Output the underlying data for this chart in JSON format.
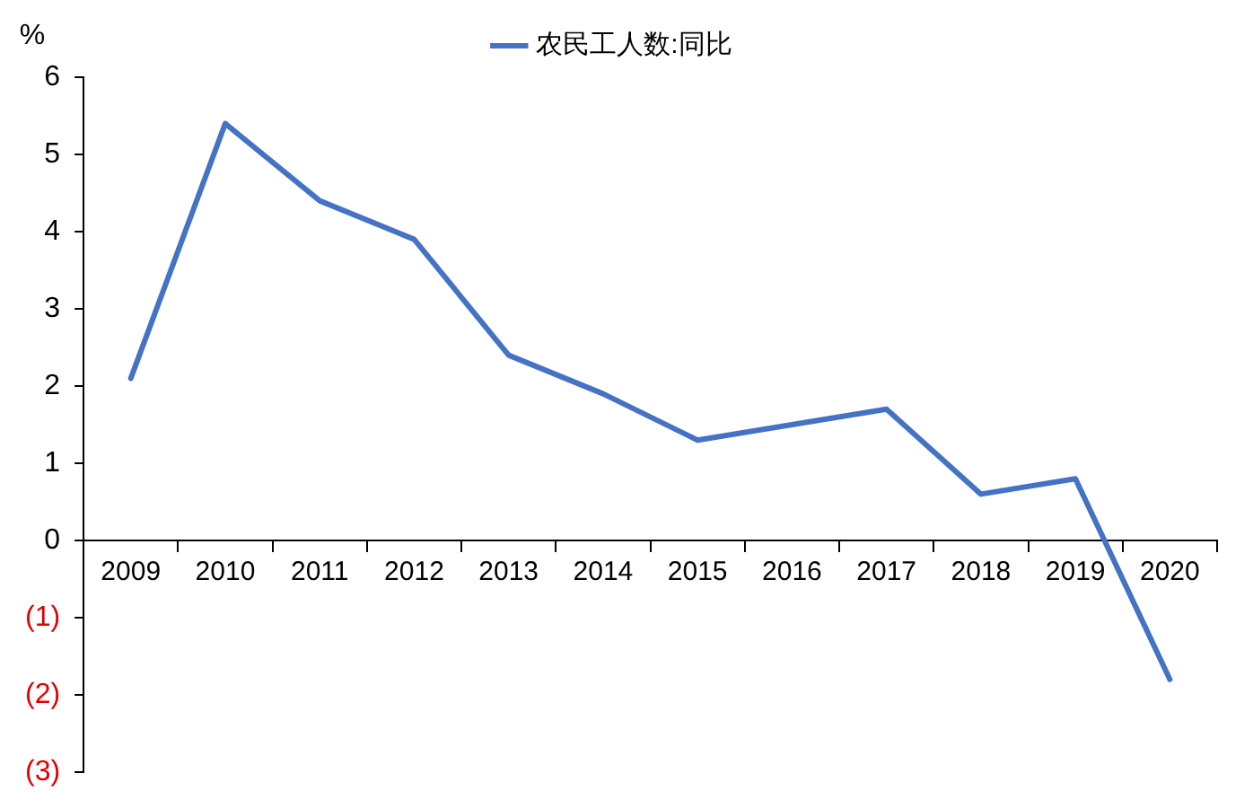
{
  "chart_data": {
    "type": "line",
    "ylabel": "%",
    "categories": [
      "2009",
      "2010",
      "2011",
      "2012",
      "2013",
      "2014",
      "2015",
      "2016",
      "2017",
      "2018",
      "2019",
      "2020"
    ],
    "series": [
      {
        "name": "农民工人数:同比",
        "color": "#4472c4",
        "values": [
          2.1,
          5.4,
          4.4,
          3.9,
          2.4,
          1.9,
          1.3,
          1.5,
          1.7,
          0.6,
          0.8,
          -1.8
        ]
      }
    ],
    "ylim": [
      -3,
      6
    ],
    "yticks": [
      {
        "value": -3,
        "label": "(3)"
      },
      {
        "value": -2,
        "label": "(2)"
      },
      {
        "value": -1,
        "label": "(1)"
      },
      0,
      1,
      2,
      3,
      4,
      5,
      6
    ],
    "grid": false,
    "legend": "top",
    "marker": "none",
    "line_style": "solid"
  }
}
